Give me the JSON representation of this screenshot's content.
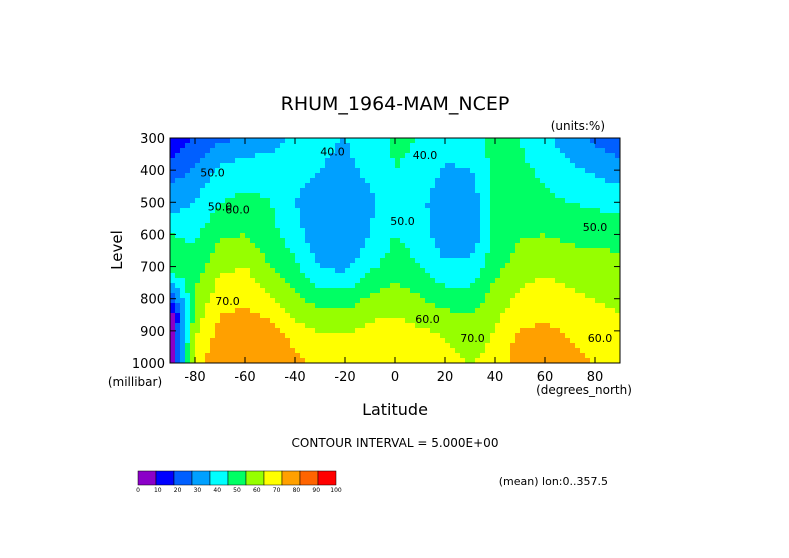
{
  "chart_data": {
    "type": "contour",
    "title": "RHUM_1964-MAM_NCEP",
    "units_label": "(units:%)",
    "xlabel": "Latitude",
    "x_unit_label": "(degrees_north)",
    "ylabel": "Level",
    "y_unit_label": "(millibar)",
    "xlim": [
      -90,
      90
    ],
    "ylim": [
      1000,
      300
    ],
    "x_ticks": [
      -80,
      -60,
      -40,
      -20,
      0,
      20,
      40,
      60,
      80
    ],
    "x_tick_labels": [
      "-80",
      "-60",
      "-40",
      "-20",
      "0",
      "20",
      "40",
      "60",
      "80"
    ],
    "y_ticks": [
      300,
      400,
      500,
      600,
      700,
      800,
      900,
      1000
    ],
    "y_tick_labels": [
      "300",
      "400",
      "500",
      "600",
      "700",
      "800",
      "900",
      "1000"
    ],
    "contour_interval_text": "CONTOUR INTERVAL = 5.000E+00",
    "mean_note": "(mean) lon:0..357.5",
    "contour_labels": [
      {
        "text": "50.0",
        "x": -73,
        "y": 420
      },
      {
        "text": "40.0",
        "x": -25,
        "y": 355
      },
      {
        "text": "40.0",
        "x": 12,
        "y": 365
      },
      {
        "text": "50.0",
        "x": -70,
        "y": 525
      },
      {
        "text": "60.0",
        "x": -63,
        "y": 535
      },
      {
        "text": "50.0",
        "x": 3,
        "y": 570
      },
      {
        "text": "50.0",
        "x": 80,
        "y": 590
      },
      {
        "text": "70.0",
        "x": -67,
        "y": 820
      },
      {
        "text": "60.0",
        "x": 13,
        "y": 875
      },
      {
        "text": "70.0",
        "x": 31,
        "y": 935
      },
      {
        "text": "60.0",
        "x": 82,
        "y": 935
      }
    ],
    "data_ranges": {
      "x": [
        -90,
        -80,
        -70,
        -60,
        -50,
        -40,
        -30,
        -20,
        -10,
        0,
        10,
        20,
        30,
        40,
        50,
        60,
        70,
        80,
        90
      ],
      "levels": [
        1000,
        925,
        850,
        700,
        600,
        500,
        400,
        300
      ],
      "values": [
        [
          0,
          78,
          85,
          88,
          85,
          82,
          77,
          76,
          77,
          78,
          78,
          76,
          70,
          76,
          84,
          85,
          82,
          80,
          76
        ],
        [
          0,
          70,
          85,
          90,
          85,
          78,
          72,
          72,
          75,
          76,
          74,
          70,
          62,
          72,
          83,
          84,
          80,
          78,
          74
        ],
        [
          0,
          65,
          80,
          82,
          78,
          68,
          63,
          63,
          68,
          70,
          66,
          62,
          60,
          68,
          76,
          78,
          75,
          72,
          70
        ],
        [
          58,
          55,
          68,
          70,
          60,
          52,
          40,
          37,
          48,
          55,
          50,
          42,
          42,
          57,
          65,
          68,
          66,
          65,
          64
        ],
        [
          50,
          48,
          58,
          60,
          54,
          44,
          33,
          30,
          40,
          50,
          45,
          33,
          32,
          52,
          59,
          60,
          57,
          56,
          55
        ],
        [
          35,
          40,
          50,
          52,
          50,
          40,
          33,
          30,
          38,
          48,
          44,
          30,
          31,
          55,
          55,
          52,
          50,
          48,
          48
        ],
        [
          25,
          32,
          42,
          46,
          47,
          44,
          40,
          37,
          43,
          50,
          47,
          39,
          40,
          53,
          52,
          48,
          42,
          38,
          34
        ],
        [
          12,
          22,
          28,
          30,
          35,
          42,
          42,
          40,
          45,
          52,
          50,
          43,
          45,
          54,
          50,
          42,
          34,
          28,
          24
        ]
      ]
    },
    "colorbar": {
      "tick_labels": [
        "0",
        "10",
        "20",
        "30",
        "40",
        "50",
        "60",
        "70",
        "80",
        "90",
        "100"
      ],
      "colors": [
        "#8b00c8",
        "#0000ff",
        "#005fff",
        "#00a0ff",
        "#00ffff",
        "#00ff64",
        "#96ff00",
        "#ffff00",
        "#ffa000",
        "#ff6400",
        "#ff0000"
      ]
    }
  }
}
